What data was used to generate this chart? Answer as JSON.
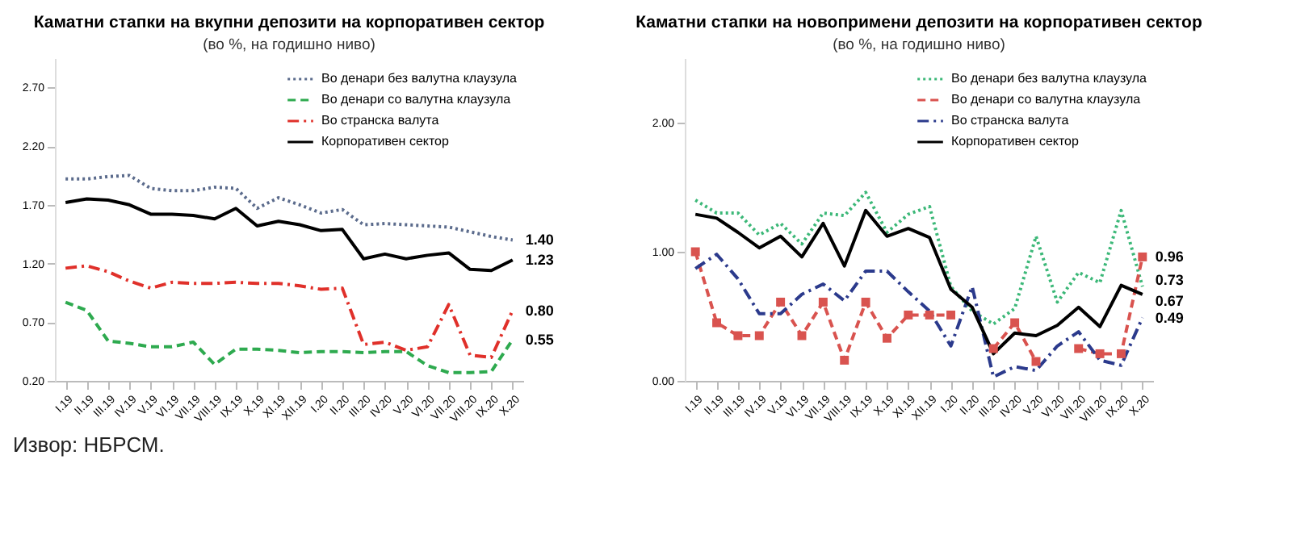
{
  "chart_data": [
    {
      "type": "line",
      "title": "Каматни стапки на вкупни депозити на корпоративен сектор",
      "subtitle": "(во %, на годишно ниво)",
      "categories": [
        "I.19",
        "II.19",
        "III.19",
        "IV.19",
        "V.19",
        "VI.19",
        "VII.19",
        "VIII.19",
        "IX.19",
        "X.19",
        "XI.19",
        "XII.19",
        "I.20",
        "II.20",
        "III.20",
        "IV.20",
        "V.20",
        "VI.20",
        "VII.20",
        "VIII.20",
        "IX.20",
        "X.20"
      ],
      "series": [
        {
          "name": "Во денари без валутна клаузула",
          "color": "#5b6b8c",
          "line_style": "dotted",
          "values": [
            1.92,
            1.92,
            1.94,
            1.95,
            1.84,
            1.82,
            1.82,
            1.85,
            1.84,
            1.67,
            1.76,
            1.7,
            1.63,
            1.66,
            1.53,
            1.54,
            1.53,
            1.52,
            1.51,
            1.47,
            1.43,
            1.4
          ],
          "value_labels": [
            null,
            null,
            null,
            null,
            null,
            null,
            null,
            null,
            null,
            null,
            null,
            null,
            null,
            null,
            null,
            null,
            null,
            null,
            null,
            null,
            null,
            "1.40"
          ]
        },
        {
          "name": "Во денари со валутна клаузула",
          "color": "#2eaa4f",
          "line_style": "dashed",
          "values": [
            0.87,
            0.8,
            0.54,
            0.52,
            0.49,
            0.49,
            0.53,
            0.34,
            0.47,
            0.47,
            0.46,
            0.44,
            0.45,
            0.45,
            0.44,
            0.45,
            0.45,
            0.33,
            0.27,
            0.27,
            0.28,
            0.55
          ],
          "value_labels": [
            null,
            null,
            null,
            null,
            null,
            null,
            null,
            null,
            null,
            null,
            null,
            null,
            null,
            null,
            null,
            null,
            null,
            null,
            null,
            null,
            null,
            "0.55"
          ]
        },
        {
          "name": "Во странска валута",
          "color": "#e0302a",
          "line_style": "dashdot",
          "values": [
            1.16,
            1.18,
            1.13,
            1.05,
            0.99,
            1.04,
            1.03,
            1.03,
            1.04,
            1.03,
            1.03,
            1.01,
            0.98,
            0.99,
            0.51,
            0.53,
            0.46,
            0.49,
            0.85,
            0.42,
            0.4,
            0.8
          ],
          "value_labels": [
            null,
            null,
            null,
            null,
            null,
            null,
            null,
            null,
            null,
            null,
            null,
            null,
            null,
            null,
            null,
            null,
            null,
            null,
            null,
            null,
            null,
            "0.80"
          ]
        },
        {
          "name": "Корпоративен сектор",
          "color": "#000000",
          "line_style": "solid",
          "values": [
            1.72,
            1.75,
            1.74,
            1.7,
            1.62,
            1.62,
            1.61,
            1.58,
            1.67,
            1.52,
            1.56,
            1.53,
            1.48,
            1.49,
            1.24,
            1.28,
            1.24,
            1.27,
            1.29,
            1.15,
            1.14,
            1.23
          ],
          "value_labels": [
            null,
            null,
            null,
            null,
            null,
            null,
            null,
            null,
            null,
            null,
            null,
            null,
            null,
            null,
            null,
            null,
            null,
            null,
            null,
            null,
            null,
            "1.23"
          ]
        }
      ],
      "ylim": [
        0.2,
        2.95
      ],
      "yticks": [
        {
          "value": 0.2,
          "label": "0.20"
        },
        {
          "value": 0.7,
          "label": "0.70"
        },
        {
          "value": 1.2,
          "label": "1.20"
        },
        {
          "value": 1.7,
          "label": "1.70"
        },
        {
          "value": 2.2,
          "label": "2.20"
        },
        {
          "value": 2.7,
          "label": "2.70"
        }
      ],
      "legend": "top right",
      "grid": false,
      "annotations": [
        "Извор: НБРСМ."
      ]
    },
    {
      "type": "line",
      "title": "Каматни стапки на новопримени депозити на корпоративен сектор",
      "subtitle": "(во %, на годишно ниво)",
      "categories": [
        "I.19",
        "II.19",
        "III.19",
        "IV.19",
        "V.19",
        "VI.19",
        "VII.19",
        "VIII.19",
        "IX.19",
        "X.19",
        "XI.19",
        "XII.19",
        "I.20",
        "II.20",
        "III.20",
        "IV.20",
        "V.20",
        "VI.20",
        "VII.20",
        "VIII.20",
        "IX.20",
        "X.20"
      ],
      "series": [
        {
          "name": "Во денари без валутна клаузула",
          "color": "#3cb878",
          "line_style": "dotted",
          "values": [
            1.4,
            1.3,
            1.3,
            1.13,
            1.22,
            1.06,
            1.3,
            1.28,
            1.46,
            1.15,
            1.29,
            1.35,
            0.73,
            0.54,
            0.44,
            0.56,
            1.12,
            0.61,
            0.84,
            0.76,
            1.32,
            0.73
          ],
          "value_labels": [
            null,
            null,
            null,
            null,
            null,
            null,
            null,
            null,
            null,
            null,
            null,
            null,
            null,
            null,
            null,
            null,
            null,
            null,
            null,
            null,
            null,
            "0.73"
          ]
        },
        {
          "name": "Во денари со валутна клаузула",
          "color": "#d9534f",
          "line_style": "dashed",
          "marker": "square",
          "values": [
            1.0,
            0.45,
            0.35,
            0.35,
            0.61,
            0.35,
            0.61,
            0.16,
            0.61,
            0.33,
            0.51,
            0.51,
            0.51,
            null,
            0.25,
            0.45,
            0.15,
            null,
            0.25,
            0.21,
            0.21,
            0.96
          ],
          "value_labels": [
            null,
            null,
            null,
            null,
            null,
            null,
            null,
            null,
            null,
            null,
            null,
            null,
            null,
            null,
            null,
            null,
            null,
            null,
            null,
            null,
            null,
            "0.96"
          ]
        },
        {
          "name": "Во странска валута",
          "color": "#2b3a8c",
          "line_style": "dashdot",
          "values": [
            0.87,
            0.98,
            0.79,
            0.52,
            0.52,
            0.67,
            0.75,
            0.62,
            0.85,
            0.85,
            0.69,
            0.54,
            0.27,
            0.73,
            0.03,
            0.11,
            0.08,
            0.27,
            0.38,
            0.16,
            0.12,
            0.49
          ],
          "value_labels": [
            null,
            null,
            null,
            null,
            null,
            null,
            null,
            null,
            null,
            null,
            null,
            null,
            null,
            null,
            null,
            null,
            null,
            null,
            null,
            null,
            null,
            "0.49"
          ]
        },
        {
          "name": "Корпоративен сектор",
          "color": "#000000",
          "line_style": "solid",
          "values": [
            1.29,
            1.26,
            1.15,
            1.03,
            1.12,
            0.96,
            1.22,
            0.89,
            1.32,
            1.12,
            1.18,
            1.11,
            0.71,
            0.57,
            0.21,
            0.37,
            0.35,
            0.43,
            0.57,
            0.42,
            0.74,
            0.67
          ],
          "value_labels": [
            null,
            null,
            null,
            null,
            null,
            null,
            null,
            null,
            null,
            null,
            null,
            null,
            null,
            null,
            null,
            null,
            null,
            null,
            null,
            null,
            null,
            "0.67"
          ]
        }
      ],
      "ylim": [
        0,
        2.5
      ],
      "yticks": [
        {
          "value": 0,
          "label": "0.00"
        },
        {
          "value": 1,
          "label": "1.00"
        },
        {
          "value": 2,
          "label": "2.00"
        }
      ],
      "legend": "top right",
      "grid": false
    }
  ]
}
